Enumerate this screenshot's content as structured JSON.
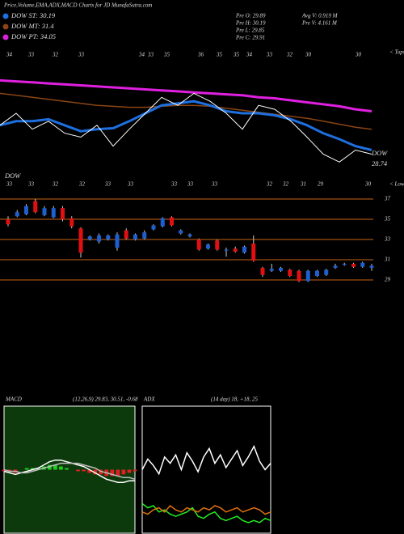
{
  "title": "Price,Volume,EMA,ADX,MACD Charts for JD MunafaSutra.com",
  "legend": [
    {
      "label": "DOW ST: 30.19",
      "color": "#1e6fe0"
    },
    {
      "label": "DOW MT: 31.4",
      "color": "#8b4513"
    },
    {
      "label": "DOW PT: 34.05",
      "color": "#e020e0"
    }
  ],
  "stats": [
    "Pre O: 29.89",
    "Pre H: 30.19",
    "Pre L: 29.85",
    "Pre C: 29.91",
    "Avg V: 0.919 M",
    "Pre V: 4.161 M"
  ],
  "tops_label": "< Tops",
  "lows_label": "< Lows",
  "top_labels": [
    "34",
    "33",
    "32",
    "33",
    "34",
    "33",
    "35",
    "36",
    "35",
    "35",
    "34",
    "33",
    "32",
    "30",
    "30"
  ],
  "bottom_labels": [
    "33",
    "33",
    "32",
    "32",
    "33",
    "33",
    "33",
    "33",
    "33",
    "32",
    "32",
    "31",
    "29",
    "30"
  ],
  "left_name": "DOW",
  "right_name": "DOW",
  "right_value": "28.74",
  "chart_data": [
    {
      "type": "line",
      "ylim": [
        27,
        40
      ],
      "series": [
        {
          "color": "#e020e0",
          "width": 3,
          "values": [
            36.8,
            36.7,
            36.6,
            36.5,
            36.4,
            36.3,
            36.2,
            36.1,
            36.0,
            35.9,
            35.8,
            35.7,
            35.6,
            35.5,
            35.4,
            35.3,
            35.1,
            35.0,
            34.8,
            34.6,
            34.4,
            34.2,
            33.9,
            33.7
          ]
        },
        {
          "color": "#8b4513",
          "width": 1.5,
          "values": [
            35.5,
            35.3,
            35.1,
            34.9,
            34.7,
            34.5,
            34.3,
            34.2,
            34.1,
            34.1,
            34.2,
            34.3,
            34.3,
            34.2,
            34.0,
            33.8,
            33.6,
            33.4,
            33.2,
            33.0,
            32.7,
            32.4,
            32.1,
            31.9
          ]
        },
        {
          "color": "#1e6fe0",
          "width": 3,
          "values": [
            32.3,
            32.7,
            32.7,
            32.9,
            32.3,
            31.7,
            31.9,
            32.0,
            32.7,
            33.5,
            34.3,
            34.5,
            34.7,
            34.3,
            33.7,
            33.5,
            33.5,
            33.3,
            32.9,
            32.3,
            31.5,
            30.9,
            30.2,
            29.8
          ]
        },
        {
          "color": "#ffffff",
          "width": 1,
          "values": [
            32.3,
            33.5,
            31.9,
            32.7,
            31.5,
            31.1,
            32.3,
            30.2,
            31.9,
            33.5,
            35.1,
            34.3,
            35.5,
            34.7,
            33.5,
            31.9,
            34.3,
            33.9,
            32.7,
            31.1,
            29.4,
            28.6,
            29.8,
            29.4
          ]
        }
      ]
    },
    {
      "type": "candlestick",
      "ylim": [
        28,
        38
      ],
      "yticks": [
        37,
        35,
        33,
        31,
        29
      ],
      "up_color": "#1e5fd0",
      "down_color": "#e01010",
      "grid_color": "#c86414",
      "open": [
        35.0,
        35.3,
        35.5,
        36.8,
        35.4,
        35.2,
        36.1,
        35.1,
        34.1,
        33.0,
        32.8,
        33.0,
        32.2,
        33.9,
        33.0,
        33.1,
        34.0,
        34.3,
        35.2,
        33.6,
        33.3,
        33.0,
        32.1,
        32.9,
        31.9,
        32.1,
        31.7,
        32.6,
        30.2,
        29.9,
        29.9,
        30.0,
        29.9,
        28.9,
        29.4,
        29.5,
        30.2,
        30.5,
        30.6,
        30.3,
        30.2
      ],
      "high": [
        35.3,
        35.9,
        36.5,
        37.0,
        36.3,
        36.3,
        36.3,
        35.3,
        34.2,
        33.4,
        33.6,
        33.5,
        33.7,
        34.1,
        33.6,
        33.9,
        34.5,
        35.2,
        35.3,
        34.0,
        33.6,
        33.1,
        32.6,
        33.0,
        32.2,
        32.3,
        32.4,
        33.4,
        30.3,
        30.6,
        30.3,
        30.1,
        30.0,
        30.0,
        30.0,
        30.1,
        30.6,
        30.7,
        30.7,
        30.8,
        30.6
      ],
      "low": [
        34.3,
        35.2,
        35.4,
        35.6,
        35.3,
        35.1,
        34.8,
        34.1,
        31.2,
        32.9,
        32.6,
        32.9,
        31.9,
        33.0,
        32.9,
        33.0,
        33.9,
        34.2,
        34.3,
        33.5,
        33.2,
        31.9,
        32.0,
        31.9,
        31.3,
        31.7,
        31.6,
        30.8,
        29.3,
        29.8,
        29.8,
        29.3,
        28.8,
        28.8,
        29.3,
        29.4,
        30.1,
        30.4,
        30.2,
        30.2,
        29.9
      ],
      "close": [
        34.5,
        35.7,
        36.3,
        35.7,
        36.1,
        36.1,
        35.0,
        34.3,
        31.7,
        33.3,
        33.4,
        33.4,
        33.5,
        33.1,
        33.5,
        33.7,
        34.4,
        35.1,
        34.4,
        33.9,
        33.5,
        32.0,
        32.5,
        32.0,
        32.0,
        31.8,
        32.3,
        30.9,
        29.5,
        30.1,
        30.2,
        29.4,
        28.9,
        29.9,
        29.9,
        30.0,
        30.4,
        30.6,
        30.3,
        30.7,
        30.4
      ]
    },
    {
      "type": "macd",
      "title": "MACD",
      "subtitle": "(12,26,9) 29.83, 30.51, -0.68",
      "ylim": [
        -4,
        4
      ],
      "background": "#0c3a0c",
      "up_color": "#22cc22",
      "down_color": "#e02020",
      "series": [
        {
          "color": "#ffffff",
          "values": [
            -0.1,
            -0.2,
            -0.3,
            -0.2,
            -0.1,
            0.0,
            0.1,
            0.3,
            0.5,
            0.6,
            0.6,
            0.5,
            0.4,
            0.3,
            0.2,
            0.0,
            -0.2,
            -0.4,
            -0.6,
            -0.7,
            -0.8,
            -0.8,
            -0.7,
            -0.7
          ]
        },
        {
          "color": "#bbbbbb",
          "values": [
            0.0,
            -0.1,
            -0.1,
            -0.2,
            -0.2,
            -0.1,
            0.0,
            0.1,
            0.2,
            0.3,
            0.4,
            0.4,
            0.4,
            0.4,
            0.3,
            0.2,
            0.1,
            -0.1,
            -0.2,
            -0.3,
            -0.4,
            -0.5,
            -0.5,
            -0.6
          ]
        }
      ],
      "histogram": [
        -0.1,
        -0.1,
        -0.2,
        0.0,
        0.1,
        0.1,
        0.1,
        0.2,
        0.3,
        0.3,
        0.2,
        0.1,
        0.0,
        -0.1,
        -0.1,
        -0.2,
        -0.3,
        -0.3,
        -0.4,
        -0.4,
        -0.4,
        -0.3,
        -0.2,
        -0.1
      ]
    },
    {
      "type": "adx",
      "title": "ADX",
      "subtitle": "(14 day) 18, +18, 25",
      "ylim": [
        0,
        60
      ],
      "background": "#000000",
      "series": [
        {
          "color": "#ffffff",
          "values": [
            30,
            35,
            32,
            28,
            36,
            33,
            37,
            30,
            38,
            34,
            29,
            36,
            40,
            33,
            37,
            31,
            35,
            39,
            32,
            36,
            41,
            34,
            30,
            33
          ]
        },
        {
          "color": "#22ee22",
          "values": [
            14,
            12,
            13,
            10,
            11,
            9,
            8,
            9,
            10,
            12,
            8,
            7,
            9,
            10,
            7,
            6,
            7,
            8,
            6,
            5,
            6,
            5,
            7,
            6
          ]
        },
        {
          "color": "#e07010",
          "values": [
            10,
            9,
            11,
            12,
            10,
            13,
            11,
            10,
            12,
            11,
            10,
            12,
            11,
            13,
            12,
            10,
            11,
            12,
            10,
            11,
            12,
            11,
            9,
            10
          ]
        }
      ]
    }
  ]
}
